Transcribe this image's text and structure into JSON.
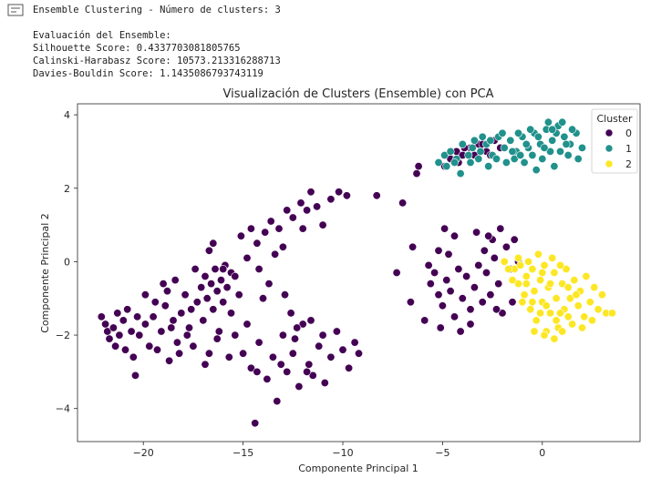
{
  "output": {
    "icon": "output-toggle-icon",
    "lines": [
      "Ensemble Clustering - Número de clusters: 3",
      "Evaluación del Ensemble:",
      "Silhouette Score: 0.4337703081805765",
      "Calinski-Harabasz Score: 10573.213316288713",
      "Davies-Bouldin Score: 1.1435086793743119"
    ]
  },
  "chart_data": {
    "type": "scatter",
    "title": "Visualización de Clusters (Ensemble) con PCA",
    "xlabel": "Componente Principal 1",
    "ylabel": "Componente Principal 2",
    "xlim": [
      -23.3,
      4.9
    ],
    "ylim": [
      -4.9,
      4.3
    ],
    "xticks": [
      -20,
      -15,
      -10,
      -5,
      0
    ],
    "yticks": [
      -4,
      -2,
      0,
      2,
      4
    ],
    "grid": false,
    "legend": {
      "title": "Cluster",
      "position": "top-right",
      "entries": [
        "0",
        "1",
        "2"
      ]
    },
    "series": [
      {
        "name": "0",
        "color": "#440154",
        "points": [
          [
            -22.1,
            -1.5
          ],
          [
            -21.9,
            -1.7
          ],
          [
            -21.8,
            -1.9
          ],
          [
            -21.7,
            -2.1
          ],
          [
            -21.5,
            -1.8
          ],
          [
            -21.4,
            -2.3
          ],
          [
            -21.3,
            -1.4
          ],
          [
            -21.2,
            -2.0
          ],
          [
            -21.0,
            -1.6
          ],
          [
            -20.9,
            -2.4
          ],
          [
            -20.8,
            -1.3
          ],
          [
            -20.6,
            -1.9
          ],
          [
            -20.5,
            -2.6
          ],
          [
            -20.3,
            -1.5
          ],
          [
            -20.2,
            -2.0
          ],
          [
            -19.9,
            -1.7
          ],
          [
            -19.7,
            -2.3
          ],
          [
            -19.5,
            -1.5
          ],
          [
            -19.3,
            -2.4
          ],
          [
            -19.1,
            -1.9
          ],
          [
            -18.9,
            -1.2
          ],
          [
            -18.8,
            -0.8
          ],
          [
            -18.7,
            -2.7
          ],
          [
            -18.5,
            -1.6
          ],
          [
            -18.3,
            -2.2
          ],
          [
            -18.1,
            -1.4
          ],
          [
            -17.9,
            -0.9
          ],
          [
            -17.7,
            -1.8
          ],
          [
            -17.5,
            -2.3
          ],
          [
            -17.3,
            -1.1
          ],
          [
            -17.1,
            -0.7
          ],
          [
            -17.0,
            -1.6
          ],
          [
            -16.9,
            -0.4
          ],
          [
            -16.8,
            -1.0
          ],
          [
            -16.7,
            -2.5
          ],
          [
            -16.6,
            -0.6
          ],
          [
            -16.5,
            -1.3
          ],
          [
            -16.4,
            -0.2
          ],
          [
            -16.3,
            -0.8
          ],
          [
            -16.2,
            -1.9
          ],
          [
            -16.1,
            -0.5
          ],
          [
            -16.0,
            -1.1
          ],
          [
            -15.9,
            -0.1
          ],
          [
            -15.8,
            -0.7
          ],
          [
            -15.6,
            -1.4
          ],
          [
            -15.4,
            -2.0
          ],
          [
            -15.2,
            -0.9
          ],
          [
            -15.0,
            -2.5
          ],
          [
            -16.5,
            0.5
          ],
          [
            -16.7,
            0.3
          ],
          [
            -17.4,
            -0.2
          ],
          [
            -15.6,
            -0.3
          ],
          [
            -14.8,
            -1.7
          ],
          [
            -14.6,
            -2.9
          ],
          [
            -14.4,
            -4.4
          ],
          [
            -14.2,
            -2.2
          ],
          [
            -14.0,
            -1.0
          ],
          [
            -13.8,
            -3.2
          ],
          [
            -13.5,
            -2.6
          ],
          [
            -13.3,
            -3.8
          ],
          [
            -13.0,
            -2.0
          ],
          [
            -12.8,
            -3.0
          ],
          [
            -12.5,
            -2.5
          ],
          [
            -12.2,
            -3.4
          ],
          [
            -12.0,
            -1.7
          ],
          [
            -11.7,
            -2.8
          ],
          [
            -11.5,
            -3.1
          ],
          [
            -11.2,
            -2.3
          ],
          [
            -10.9,
            -3.3
          ],
          [
            -10.6,
            -2.6
          ],
          [
            -10.3,
            -1.9
          ],
          [
            -10.0,
            -2.4
          ],
          [
            -9.7,
            -2.9
          ],
          [
            -9.4,
            -2.2
          ],
          [
            -9.2,
            -2.5
          ],
          [
            -14.3,
            -3.0
          ],
          [
            -13.1,
            -2.8
          ],
          [
            -12.4,
            -2.1
          ],
          [
            -11.8,
            -3.0
          ],
          [
            -11.0,
            -2.0
          ],
          [
            -20.4,
            -3.1
          ],
          [
            -19.9,
            -0.9
          ],
          [
            -19.4,
            -1.1
          ],
          [
            -18.6,
            -1.8
          ],
          [
            -17.8,
            -2.0
          ],
          [
            -16.9,
            -2.8
          ],
          [
            -16.0,
            -0.2
          ],
          [
            -15.4,
            -0.4
          ],
          [
            -15.1,
            0.7
          ],
          [
            -14.6,
            0.9
          ],
          [
            -14.3,
            0.5
          ],
          [
            -13.9,
            0.8
          ],
          [
            -13.6,
            1.1
          ],
          [
            -13.2,
            0.9
          ],
          [
            -12.8,
            1.4
          ],
          [
            -12.5,
            1.2
          ],
          [
            -12.1,
            1.6
          ],
          [
            -11.8,
            1.4
          ],
          [
            -11.6,
            1.9
          ],
          [
            -11.3,
            1.5
          ],
          [
            -11.0,
            1.0
          ],
          [
            -10.6,
            1.7
          ],
          [
            -10.2,
            1.9
          ],
          [
            -9.8,
            1.8
          ],
          [
            -13.0,
            0.4
          ],
          [
            -12.0,
            0.9
          ],
          [
            -14.8,
            0.1
          ],
          [
            -13.4,
            0.2
          ],
          [
            -14.2,
            -0.2
          ],
          [
            -13.7,
            -0.6
          ],
          [
            -12.9,
            -0.9
          ],
          [
            -12.6,
            -1.4
          ],
          [
            -12.3,
            -1.8
          ],
          [
            -11.6,
            -1.6
          ],
          [
            -15.7,
            -2.6
          ],
          [
            -16.3,
            -2.1
          ],
          [
            -19.0,
            -0.6
          ],
          [
            -18.4,
            -0.5
          ],
          [
            -17.6,
            -1.3
          ],
          [
            -18.2,
            -2.5
          ],
          [
            -4.9,
            2.6
          ],
          [
            -4.6,
            2.8
          ],
          [
            -4.3,
            3.0
          ],
          [
            -4.0,
            2.9
          ],
          [
            -3.6,
            3.1
          ],
          [
            -3.2,
            3.2
          ],
          [
            -2.8,
            3.0
          ],
          [
            -2.4,
            3.3
          ],
          [
            -2.1,
            3.1
          ],
          [
            -3.9,
            3.1
          ],
          [
            -3.0,
            3.2
          ],
          [
            -2.6,
            2.9
          ],
          [
            -4.2,
            2.7
          ],
          [
            -3.4,
            2.9
          ],
          [
            -6.3,
            2.4
          ],
          [
            -6.2,
            2.6
          ],
          [
            -5.6,
            -0.6
          ],
          [
            -5.4,
            -0.3
          ],
          [
            -5.2,
            -0.9
          ],
          [
            -5.0,
            -1.2
          ],
          [
            -4.8,
            -0.5
          ],
          [
            -4.6,
            -0.8
          ],
          [
            -4.4,
            -1.5
          ],
          [
            -4.2,
            -0.2
          ],
          [
            -4.0,
            -1.0
          ],
          [
            -3.8,
            -0.4
          ],
          [
            -3.6,
            -1.3
          ],
          [
            -3.4,
            -0.7
          ],
          [
            -3.2,
            -0.1
          ],
          [
            -3.0,
            -1.1
          ],
          [
            -2.8,
            -0.3
          ],
          [
            -2.6,
            -0.9
          ],
          [
            -2.4,
            0.1
          ],
          [
            -2.2,
            -0.6
          ],
          [
            -2.0,
            -1.4
          ],
          [
            -1.8,
            0.4
          ],
          [
            -1.6,
            -0.2
          ],
          [
            -1.4,
            0.6
          ],
          [
            -1.2,
            0.0
          ],
          [
            -2.5,
            0.6
          ],
          [
            -2.9,
            0.3
          ],
          [
            -3.3,
            0.8
          ],
          [
            -2.7,
            0.7
          ],
          [
            -5.2,
            0.3
          ],
          [
            -4.7,
            0.2
          ],
          [
            -4.4,
            0.7
          ],
          [
            -4.9,
            0.9
          ],
          [
            -6.6,
            -1.1
          ],
          [
            -5.9,
            -1.6
          ],
          [
            -5.1,
            -1.8
          ],
          [
            -4.1,
            -1.9
          ],
          [
            -3.6,
            -1.7
          ],
          [
            -2.3,
            -1.3
          ],
          [
            -1.5,
            -1.1
          ],
          [
            -2.1,
            0.9
          ],
          [
            -7.3,
            -0.3
          ],
          [
            -8.3,
            1.8
          ],
          [
            -7.0,
            1.6
          ],
          [
            -6.5,
            0.4
          ],
          [
            -5.7,
            -0.1
          ]
        ]
      },
      {
        "name": "1",
        "color": "#21918c",
        "points": [
          [
            -5.2,
            2.7
          ],
          [
            -4.9,
            2.9
          ],
          [
            -4.6,
            3.0
          ],
          [
            -4.3,
            2.8
          ],
          [
            -4.0,
            3.2
          ],
          [
            -3.7,
            2.9
          ],
          [
            -3.4,
            3.3
          ],
          [
            -3.1,
            3.0
          ],
          [
            -2.8,
            3.2
          ],
          [
            -2.5,
            2.9
          ],
          [
            -2.2,
            3.4
          ],
          [
            -1.9,
            3.1
          ],
          [
            -1.6,
            3.3
          ],
          [
            -1.3,
            3.0
          ],
          [
            -1.0,
            3.4
          ],
          [
            -0.7,
            3.1
          ],
          [
            -0.4,
            3.5
          ],
          [
            -0.1,
            3.2
          ],
          [
            0.2,
            3.6
          ],
          [
            0.5,
            3.3
          ],
          [
            0.8,
            3.7
          ],
          [
            1.1,
            3.4
          ],
          [
            1.4,
            3.2
          ],
          [
            1.7,
            3.5
          ],
          [
            2.0,
            3.1
          ],
          [
            -4.8,
            2.6
          ],
          [
            -4.4,
            2.7
          ],
          [
            -4.1,
            2.4
          ],
          [
            -3.6,
            2.7
          ],
          [
            -3.2,
            2.8
          ],
          [
            -2.7,
            2.6
          ],
          [
            -2.3,
            2.8
          ],
          [
            -1.8,
            2.7
          ],
          [
            -1.4,
            2.8
          ],
          [
            -0.9,
            2.7
          ],
          [
            -0.5,
            2.9
          ],
          [
            0.0,
            2.8
          ],
          [
            0.4,
            3.0
          ],
          [
            0.9,
            3.0
          ],
          [
            1.3,
            2.9
          ],
          [
            1.8,
            2.8
          ],
          [
            -1.2,
            3.5
          ],
          [
            -0.6,
            3.6
          ],
          [
            0.3,
            3.8
          ],
          [
            0.7,
            3.5
          ],
          [
            1.0,
            3.8
          ],
          [
            1.5,
            3.6
          ],
          [
            -0.2,
            3.4
          ],
          [
            -2.0,
            3.5
          ],
          [
            -2.6,
            3.3
          ],
          [
            -3.0,
            3.4
          ],
          [
            -3.5,
            3.1
          ],
          [
            -0.3,
            2.5
          ],
          [
            0.6,
            2.6
          ],
          [
            1.2,
            3.2
          ],
          [
            0.1,
            3.1
          ],
          [
            -1.5,
            3.0
          ],
          [
            -1.1,
            2.9
          ],
          [
            -0.8,
            3.2
          ],
          [
            0.5,
            3.6
          ]
        ]
      },
      {
        "name": "2",
        "color": "#fde725",
        "points": [
          [
            -1.4,
            -0.2
          ],
          [
            -1.2,
            -0.6
          ],
          [
            -1.1,
            -0.1
          ],
          [
            -0.9,
            -0.9
          ],
          [
            -0.8,
            -0.4
          ],
          [
            -0.6,
            -1.3
          ],
          [
            -0.5,
            -0.2
          ],
          [
            -0.4,
            -0.8
          ],
          [
            -0.3,
            -1.6
          ],
          [
            -0.1,
            -0.5
          ],
          [
            0.0,
            -1.1
          ],
          [
            0.1,
            -0.1
          ],
          [
            0.2,
            -1.9
          ],
          [
            0.3,
            -0.7
          ],
          [
            0.4,
            -1.4
          ],
          [
            0.6,
            -0.3
          ],
          [
            0.7,
            -1.0
          ],
          [
            0.8,
            -1.8
          ],
          [
            1.0,
            -0.6
          ],
          [
            1.1,
            -1.3
          ],
          [
            1.2,
            -0.2
          ],
          [
            1.4,
            -1.0
          ],
          [
            1.5,
            -1.7
          ],
          [
            1.6,
            -0.5
          ],
          [
            1.8,
            -1.2
          ],
          [
            1.9,
            -0.8
          ],
          [
            2.1,
            -1.5
          ],
          [
            2.2,
            -0.4
          ],
          [
            2.4,
            -1.1
          ],
          [
            2.6,
            -0.7
          ],
          [
            2.8,
            -1.3
          ],
          [
            3.0,
            -0.9
          ],
          [
            3.2,
            -1.4
          ],
          [
            -0.7,
            0.0
          ],
          [
            -0.2,
            0.2
          ],
          [
            0.5,
            0.1
          ],
          [
            0.9,
            -0.1
          ],
          [
            -1.5,
            -0.5
          ],
          [
            -1.0,
            -1.1
          ],
          [
            -0.4,
            -1.9
          ],
          [
            0.1,
            -2.0
          ],
          [
            0.6,
            -2.1
          ],
          [
            1.0,
            -1.9
          ],
          [
            1.3,
            -1.5
          ],
          [
            0.2,
            -1.2
          ],
          [
            -0.1,
            -1.4
          ],
          [
            0.9,
            -1.4
          ],
          [
            1.7,
            -0.9
          ],
          [
            2.0,
            -1.8
          ],
          [
            2.5,
            -1.6
          ],
          [
            -1.2,
            0.1
          ],
          [
            -0.8,
            -0.6
          ],
          [
            0.0,
            -0.3
          ],
          [
            0.4,
            -0.6
          ],
          [
            1.3,
            -0.7
          ],
          [
            0.7,
            -1.6
          ],
          [
            -0.5,
            -1.1
          ],
          [
            -1.7,
            -0.2
          ],
          [
            -1.9,
            0.0
          ],
          [
            3.5,
            -1.4
          ]
        ]
      }
    ]
  }
}
